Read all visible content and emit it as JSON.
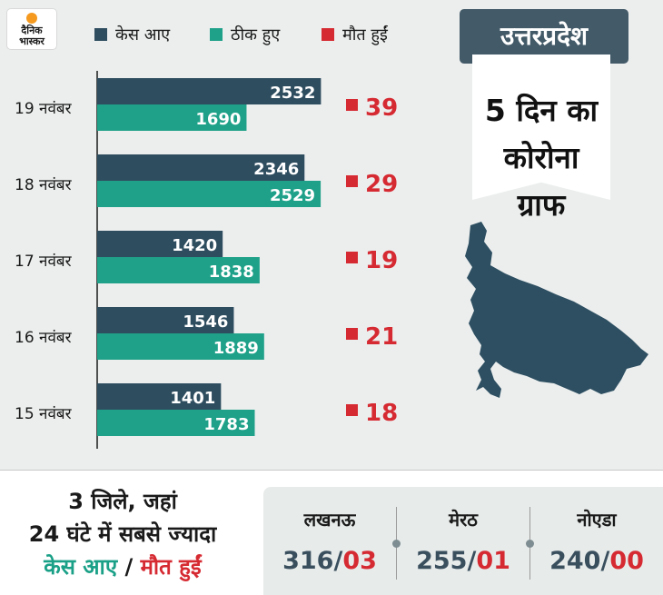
{
  "logo": {
    "line1": "दैनिक",
    "line2": "भास्कर"
  },
  "legend": [
    {
      "label": "केस आए",
      "color": "#2e4d5f"
    },
    {
      "label": "ठीक हुए",
      "color": "#1fa189"
    },
    {
      "label": "मौत हुईं",
      "color": "#d62a32"
    }
  ],
  "region_label": "उत्तरप्रदेश",
  "headline": [
    "5 दिन का",
    "कोरोना",
    "ग्राफ"
  ],
  "chart_data": {
    "type": "bar",
    "orientation": "horizontal",
    "categories": [
      "19 नवंबर",
      "18 नवंबर",
      "17 नवंबर",
      "16 नवंबर",
      "15 नवंबर"
    ],
    "series": [
      {
        "name": "केस आए",
        "values": [
          2532,
          2346,
          1420,
          1546,
          1401
        ],
        "color": "#2e4d5f"
      },
      {
        "name": "ठीक हुए",
        "values": [
          1690,
          2529,
          1838,
          1889,
          1783
        ],
        "color": "#1fa189"
      },
      {
        "name": "मौत हुईं",
        "values": [
          39,
          29,
          19,
          21,
          18
        ],
        "color": "#d62a32"
      }
    ],
    "xlim": [
      0,
      2600
    ],
    "legend_position": "top"
  },
  "bottom": {
    "title_line1": "3 जिले, जहां",
    "title_line2": "24 घंटे में सबसे ज्यादा",
    "title_cases": "केस आए",
    "title_sep": " / ",
    "title_deaths": "मौत हुईं",
    "cities": [
      {
        "name": "लखनऊ",
        "cases": "316",
        "sep": "/",
        "deaths": "03"
      },
      {
        "name": "मेरठ",
        "cases": "255",
        "sep": "/",
        "deaths": "01"
      },
      {
        "name": "नोएडा",
        "cases": "240",
        "sep": "/",
        "deaths": "00"
      }
    ]
  }
}
